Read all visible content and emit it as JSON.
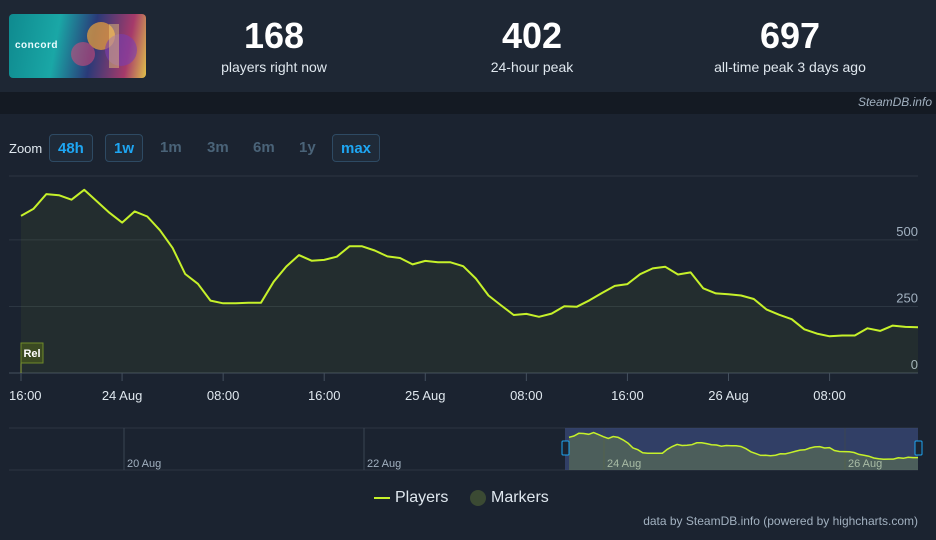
{
  "game": {
    "name": "concord"
  },
  "stats": [
    {
      "value": "168",
      "label": "players right now"
    },
    {
      "value": "402",
      "label": "24-hour peak"
    },
    {
      "value": "697",
      "label": "all-time peak 3 days ago"
    }
  ],
  "source": "SteamDB.info",
  "zoom": {
    "label": "Zoom",
    "buttons": [
      {
        "label": "48h",
        "active": true
      },
      {
        "label": "1w",
        "active": true
      },
      {
        "label": "1m",
        "active": false
      },
      {
        "label": "3m",
        "active": false
      },
      {
        "label": "6m",
        "active": false
      },
      {
        "label": "1y",
        "active": false
      },
      {
        "label": "max",
        "active": true
      }
    ]
  },
  "legend": {
    "players": "Players",
    "markers": "Markers"
  },
  "credit": "data by SteamDB.info (powered by highcharts.com)",
  "colors": {
    "line": "#c6f12a",
    "active_button": "#1ea6f2",
    "background": "#1b2330"
  },
  "chart_data": {
    "type": "line",
    "series": [
      {
        "name": "Players",
        "x_hours": [
          0,
          1,
          2,
          3,
          4,
          5,
          6,
          7,
          8,
          9,
          10,
          11,
          12,
          13,
          14,
          15,
          16,
          17,
          18,
          19,
          20,
          21,
          22,
          23,
          24,
          25,
          26,
          27,
          28,
          29,
          30,
          31,
          32,
          33,
          34,
          35,
          36,
          37,
          38,
          39,
          40,
          41,
          42,
          43,
          44,
          45,
          46,
          47,
          48,
          49,
          50,
          51,
          52,
          53,
          54,
          55,
          56,
          57,
          58,
          59,
          60,
          61,
          62,
          63,
          64,
          65,
          66,
          67,
          68,
          69,
          70,
          71
        ],
        "values": [
          590,
          617,
          672,
          668,
          651,
          688,
          645,
          602,
          565,
          607,
          588,
          536,
          470,
          372,
          335,
          272,
          262,
          262,
          264,
          264,
          343,
          400,
          443,
          422,
          425,
          437,
          476,
          476,
          460,
          438,
          432,
          408,
          421,
          416,
          416,
          401,
          355,
          291,
          254,
          218,
          222,
          211,
          223,
          251,
          249,
          273,
          301,
          327,
          334,
          371,
          393,
          399,
          370,
          378,
          318,
          299,
          296,
          291,
          278,
          239,
          219,
          202,
          164,
          148,
          138,
          141,
          141,
          168,
          158,
          178,
          173,
          172
        ],
        "annotations": [
          {
            "label": "Rel",
            "x_hours": 1
          }
        ]
      }
    ],
    "x_tick_labels": [
      "16:00",
      "24 Aug",
      "08:00",
      "16:00",
      "25 Aug",
      "08:00",
      "16:00",
      "26 Aug",
      "08:00"
    ],
    "x_tick_hours": [
      0,
      8,
      16,
      24,
      32,
      40,
      48,
      56,
      64
    ],
    "y_tick_labels": [
      "0",
      "250",
      "500"
    ],
    "ylim": [
      0,
      740
    ],
    "navigator_labels": [
      "20 Aug",
      "22 Aug",
      "24 Aug",
      "26 Aug"
    ],
    "grid": true,
    "legend_position": "bottom-center"
  }
}
